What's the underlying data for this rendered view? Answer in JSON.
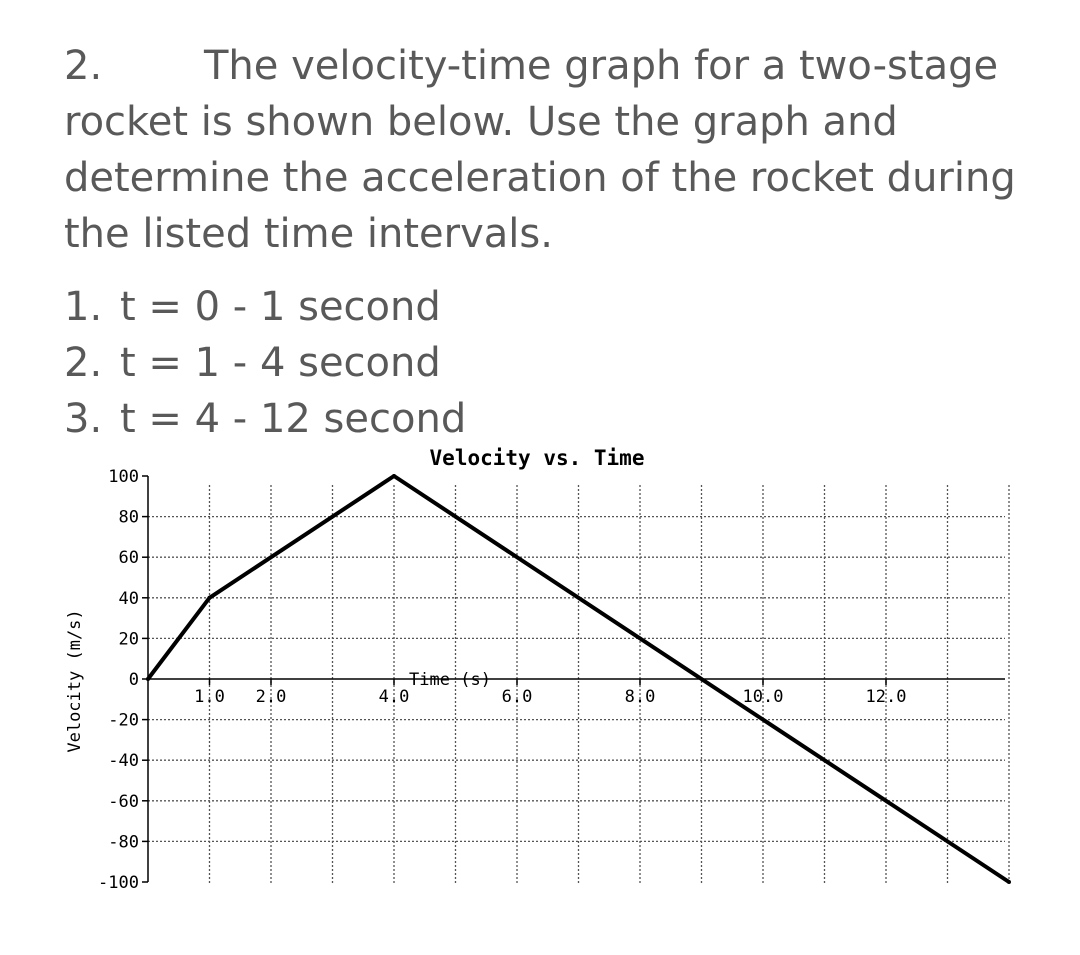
{
  "problem": {
    "number": "2.",
    "text": "The velocity-time graph for a two-stage rocket is shown below. Use the graph and determine the acceleration of the rocket during the listed time intervals."
  },
  "intervals": [
    {
      "num": "1.",
      "text": "t = 0 - 1 second"
    },
    {
      "num": "2.",
      "text": "t = 1 - 4 second"
    },
    {
      "num": "3.",
      "text": "t = 4 - 12 second"
    }
  ],
  "chart_data": {
    "type": "line",
    "title": "Velocity vs. Time",
    "xlabel": "Time (s)",
    "ylabel": "Velocity (m/s)",
    "xlim": [
      0,
      14
    ],
    "ylim": [
      -100,
      100
    ],
    "x_tick_values": [
      1,
      2,
      4,
      6,
      8,
      10,
      12
    ],
    "x_tick_labels": [
      "1.0",
      "2.0",
      "4.0",
      "6.0",
      "8.0",
      "10.0",
      "12.0"
    ],
    "y_tick_values": [
      100,
      80,
      60,
      40,
      20,
      0,
      -20,
      -40,
      -60,
      -80,
      -100
    ],
    "y_tick_labels": [
      "100",
      "80",
      "60",
      "40",
      "20",
      "0",
      "-20",
      "-40",
      "-60",
      "-80",
      "-100"
    ],
    "grid": true,
    "series": [
      {
        "x": [
          0,
          1,
          4,
          14
        ],
        "y": [
          0,
          40,
          100,
          -100
        ]
      }
    ]
  }
}
